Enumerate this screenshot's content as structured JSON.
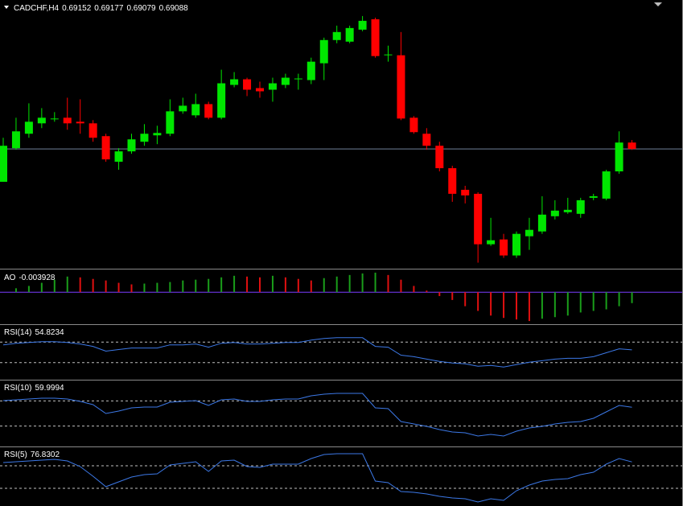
{
  "chart_data": [
    {
      "type": "candlestick",
      "title": "CADCHF,H4",
      "up_color": "#00e600",
      "down_color": "#ff0000",
      "price_line_color": "#6f7f99",
      "ylim": [
        0.679,
        0.7056
      ],
      "open": [
        0.6876,
        0.69096,
        0.6924,
        0.69344,
        0.69384,
        0.694,
        0.6936,
        0.69344,
        0.69216,
        0.6896,
        0.69064,
        0.6916,
        0.69224,
        0.6924,
        0.69464,
        0.69424,
        0.69536,
        0.694,
        0.69728,
        0.69784,
        0.69696,
        0.6968,
        0.69728,
        0.69784,
        0.69776,
        0.69944,
        0.70176,
        0.7016,
        0.7028,
        0.70384,
        0.70024,
        0.70024,
        0.694,
        0.6924,
        0.6912,
        0.68896,
        0.6868,
        0.6864,
        0.68136,
        0.68184,
        0.68024,
        0.68216,
        0.68264,
        0.68416,
        0.68456,
        0.6844,
        0.686,
        0.68592,
        0.68864,
        0.69152
      ],
      "high": [
        0.692,
        0.694,
        0.69544,
        0.69496,
        0.69456,
        0.696,
        0.69584,
        0.69376,
        0.6924,
        0.69096,
        0.6924,
        0.69336,
        0.6932,
        0.69584,
        0.696,
        0.6964,
        0.6956,
        0.6988,
        0.69856,
        0.698,
        0.6976,
        0.698,
        0.6984,
        0.6984,
        0.7,
        0.702,
        0.7032,
        0.7032,
        0.70416,
        0.704,
        0.7012,
        0.70256,
        0.69416,
        0.69296,
        0.6916,
        0.6892,
        0.6872,
        0.68656,
        0.684,
        0.6824,
        0.68264,
        0.684,
        0.68616,
        0.68576,
        0.686,
        0.686,
        0.6864,
        0.6888,
        0.69264,
        0.69177
      ],
      "low": [
        0.6876,
        0.6908,
        0.692,
        0.69296,
        0.6936,
        0.6928,
        0.6924,
        0.6916,
        0.6896,
        0.6888,
        0.6904,
        0.6912,
        0.69136,
        0.69216,
        0.6944,
        0.694,
        0.69384,
        0.69384,
        0.69704,
        0.69616,
        0.696,
        0.6956,
        0.69696,
        0.6968,
        0.69736,
        0.69776,
        0.70144,
        0.70144,
        0.70264,
        0.7,
        0.6996,
        0.69376,
        0.6924,
        0.6908,
        0.68864,
        0.6856,
        0.68544,
        0.67952,
        0.6812,
        0.68,
        0.68,
        0.6808,
        0.6824,
        0.68384,
        0.6844,
        0.684,
        0.68576,
        0.68576,
        0.6884,
        0.69079
      ],
      "close": [
        0.6912,
        0.69264,
        0.6936,
        0.694,
        0.69392,
        0.69344,
        0.69344,
        0.692,
        0.68984,
        0.69064,
        0.69184,
        0.6924,
        0.69248,
        0.69464,
        0.6952,
        0.69536,
        0.694,
        0.69744,
        0.69784,
        0.6968,
        0.69664,
        0.69744,
        0.698,
        0.69792,
        0.6996,
        0.70176,
        0.70256,
        0.70296,
        0.70368,
        0.70016,
        0.70032,
        0.69392,
        0.69256,
        0.6912,
        0.68896,
        0.6864,
        0.68624,
        0.68136,
        0.68176,
        0.68024,
        0.6824,
        0.6828,
        0.68432,
        0.68472,
        0.6848,
        0.68576,
        0.68616,
        0.68864,
        0.69152,
        0.69088
      ]
    },
    {
      "type": "histogram",
      "name": "AO",
      "up_color": "#1a9e1a",
      "down_color": "#e01010",
      "zero_color": "#7a3cff",
      "ylim": [
        -0.0112,
        0.00756
      ],
      "values": [
        null,
        0.0014,
        0.00224,
        0.00336,
        0.00448,
        0.0056,
        0.00532,
        0.00476,
        0.0042,
        0.00336,
        0.0028,
        0.00308,
        0.00336,
        0.00364,
        0.0042,
        0.00448,
        0.00476,
        0.00532,
        0.00588,
        0.0056,
        0.00532,
        0.00588,
        0.00532,
        0.00476,
        0.0042,
        0.00504,
        0.0056,
        0.00616,
        0.00672,
        0.007,
        0.00616,
        0.00448,
        0.00224,
        0.00056,
        -0.0014,
        -0.0028,
        -0.00504,
        -0.00672,
        -0.0084,
        -0.00924,
        -0.0098,
        -0.01036,
        -0.00952,
        -0.00896,
        -0.0084,
        -0.00728,
        -0.00672,
        -0.00616,
        -0.00504,
        -0.003928
      ]
    },
    {
      "type": "line",
      "name": "RSI(14)",
      "color": "#3c78e6",
      "levels": [
        70,
        30
      ],
      "ylim": [
        0,
        100
      ],
      "values": [
        64.6,
        67.7,
        69.2,
        70.8,
        70.8,
        69.2,
        66.2,
        61.5,
        52.3,
        55.4,
        58.5,
        58.5,
        58.5,
        64.6,
        64.6,
        66.2,
        60,
        67.7,
        69.2,
        66.2,
        66.2,
        67.7,
        69.2,
        69.2,
        73.8,
        76.9,
        78.5,
        78.5,
        78.5,
        61.5,
        60,
        44.6,
        41.5,
        36.9,
        32.3,
        29.2,
        27.7,
        23.1,
        24.6,
        21.5,
        26.2,
        30.8,
        33.8,
        36.9,
        38.5,
        38.5,
        41.5,
        49.2,
        56.9,
        54.8234
      ]
    },
    {
      "type": "line",
      "name": "RSI(10)",
      "color": "#3c78e6",
      "levels": [
        70,
        30
      ],
      "ylim": [
        0,
        100
      ],
      "values": [
        70.5,
        71.8,
        73.1,
        74.4,
        74.4,
        73.1,
        69.2,
        64.1,
        50,
        53.8,
        59,
        60.3,
        60.3,
        67.9,
        69.2,
        70.5,
        62.8,
        71.8,
        73.1,
        69.2,
        69.2,
        71.8,
        73.1,
        73.1,
        78.2,
        80.8,
        82.1,
        82.1,
        82.1,
        59,
        57.7,
        37.2,
        33.3,
        29.5,
        24.4,
        20.5,
        19.2,
        14.1,
        16.7,
        14.1,
        21.8,
        26.9,
        29.5,
        33.3,
        35.9,
        37.2,
        42.3,
        52.6,
        62.8,
        59.9994
      ]
    },
    {
      "type": "line",
      "name": "RSI(5)",
      "color": "#3c78e6",
      "levels": [
        70,
        30
      ],
      "ylim": [
        0,
        100
      ],
      "values": [
        75.7,
        77.1,
        78.6,
        80,
        81.4,
        78.6,
        68.6,
        51.4,
        32.9,
        41.4,
        50,
        54.3,
        55.7,
        71.4,
        74.3,
        77.1,
        60,
        78.6,
        80,
        68.6,
        67.1,
        72.9,
        72.9,
        72.9,
        82.9,
        90,
        91.4,
        91.4,
        91.4,
        42.9,
        40,
        24.3,
        22.9,
        20,
        15.7,
        12.9,
        11.4,
        5.7,
        11.4,
        8.6,
        25.7,
        35.7,
        42.9,
        45.7,
        47.1,
        54.3,
        58.6,
        72.9,
        82.9,
        76.8302
      ]
    }
  ]
}
